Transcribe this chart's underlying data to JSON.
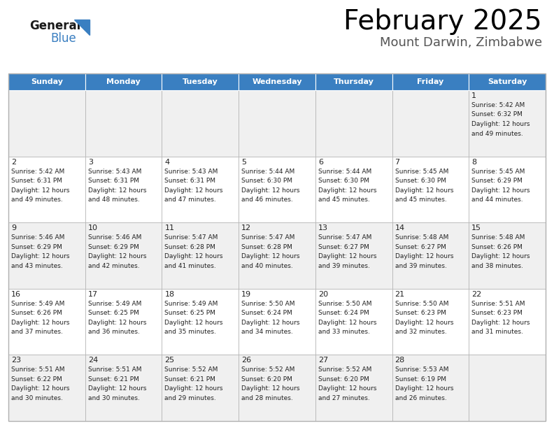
{
  "title": "February 2025",
  "subtitle": "Mount Darwin, Zimbabwe",
  "header_bg": "#3a7fc1",
  "header_text": "#ffffff",
  "row_bg_even": "#f0f0f0",
  "row_bg_odd": "#ffffff",
  "days_of_week": [
    "Sunday",
    "Monday",
    "Tuesday",
    "Wednesday",
    "Thursday",
    "Friday",
    "Saturday"
  ],
  "cell_border": "#b0b0b0",
  "logo_black": "#1a1a1a",
  "logo_blue": "#3a7fc1",
  "subtitle_color": "#555555",
  "text_color": "#222222",
  "calendar_data": [
    [
      null,
      null,
      null,
      null,
      null,
      null,
      {
        "day": 1,
        "sunrise": "5:42 AM",
        "sunset": "6:32 PM",
        "daylight": "12 hours and 49 minutes."
      }
    ],
    [
      {
        "day": 2,
        "sunrise": "5:42 AM",
        "sunset": "6:31 PM",
        "daylight": "12 hours and 49 minutes."
      },
      {
        "day": 3,
        "sunrise": "5:43 AM",
        "sunset": "6:31 PM",
        "daylight": "12 hours and 48 minutes."
      },
      {
        "day": 4,
        "sunrise": "5:43 AM",
        "sunset": "6:31 PM",
        "daylight": "12 hours and 47 minutes."
      },
      {
        "day": 5,
        "sunrise": "5:44 AM",
        "sunset": "6:30 PM",
        "daylight": "12 hours and 46 minutes."
      },
      {
        "day": 6,
        "sunrise": "5:44 AM",
        "sunset": "6:30 PM",
        "daylight": "12 hours and 45 minutes."
      },
      {
        "day": 7,
        "sunrise": "5:45 AM",
        "sunset": "6:30 PM",
        "daylight": "12 hours and 45 minutes."
      },
      {
        "day": 8,
        "sunrise": "5:45 AM",
        "sunset": "6:29 PM",
        "daylight": "12 hours and 44 minutes."
      }
    ],
    [
      {
        "day": 9,
        "sunrise": "5:46 AM",
        "sunset": "6:29 PM",
        "daylight": "12 hours and 43 minutes."
      },
      {
        "day": 10,
        "sunrise": "5:46 AM",
        "sunset": "6:29 PM",
        "daylight": "12 hours and 42 minutes."
      },
      {
        "day": 11,
        "sunrise": "5:47 AM",
        "sunset": "6:28 PM",
        "daylight": "12 hours and 41 minutes."
      },
      {
        "day": 12,
        "sunrise": "5:47 AM",
        "sunset": "6:28 PM",
        "daylight": "12 hours and 40 minutes."
      },
      {
        "day": 13,
        "sunrise": "5:47 AM",
        "sunset": "6:27 PM",
        "daylight": "12 hours and 39 minutes."
      },
      {
        "day": 14,
        "sunrise": "5:48 AM",
        "sunset": "6:27 PM",
        "daylight": "12 hours and 39 minutes."
      },
      {
        "day": 15,
        "sunrise": "5:48 AM",
        "sunset": "6:26 PM",
        "daylight": "12 hours and 38 minutes."
      }
    ],
    [
      {
        "day": 16,
        "sunrise": "5:49 AM",
        "sunset": "6:26 PM",
        "daylight": "12 hours and 37 minutes."
      },
      {
        "day": 17,
        "sunrise": "5:49 AM",
        "sunset": "6:25 PM",
        "daylight": "12 hours and 36 minutes."
      },
      {
        "day": 18,
        "sunrise": "5:49 AM",
        "sunset": "6:25 PM",
        "daylight": "12 hours and 35 minutes."
      },
      {
        "day": 19,
        "sunrise": "5:50 AM",
        "sunset": "6:24 PM",
        "daylight": "12 hours and 34 minutes."
      },
      {
        "day": 20,
        "sunrise": "5:50 AM",
        "sunset": "6:24 PM",
        "daylight": "12 hours and 33 minutes."
      },
      {
        "day": 21,
        "sunrise": "5:50 AM",
        "sunset": "6:23 PM",
        "daylight": "12 hours and 32 minutes."
      },
      {
        "day": 22,
        "sunrise": "5:51 AM",
        "sunset": "6:23 PM",
        "daylight": "12 hours and 31 minutes."
      }
    ],
    [
      {
        "day": 23,
        "sunrise": "5:51 AM",
        "sunset": "6:22 PM",
        "daylight": "12 hours and 30 minutes."
      },
      {
        "day": 24,
        "sunrise": "5:51 AM",
        "sunset": "6:21 PM",
        "daylight": "12 hours and 30 minutes."
      },
      {
        "day": 25,
        "sunrise": "5:52 AM",
        "sunset": "6:21 PM",
        "daylight": "12 hours and 29 minutes."
      },
      {
        "day": 26,
        "sunrise": "5:52 AM",
        "sunset": "6:20 PM",
        "daylight": "12 hours and 28 minutes."
      },
      {
        "day": 27,
        "sunrise": "5:52 AM",
        "sunset": "6:20 PM",
        "daylight": "12 hours and 27 minutes."
      },
      {
        "day": 28,
        "sunrise": "5:53 AM",
        "sunset": "6:19 PM",
        "daylight": "12 hours and 26 minutes."
      },
      null
    ]
  ]
}
